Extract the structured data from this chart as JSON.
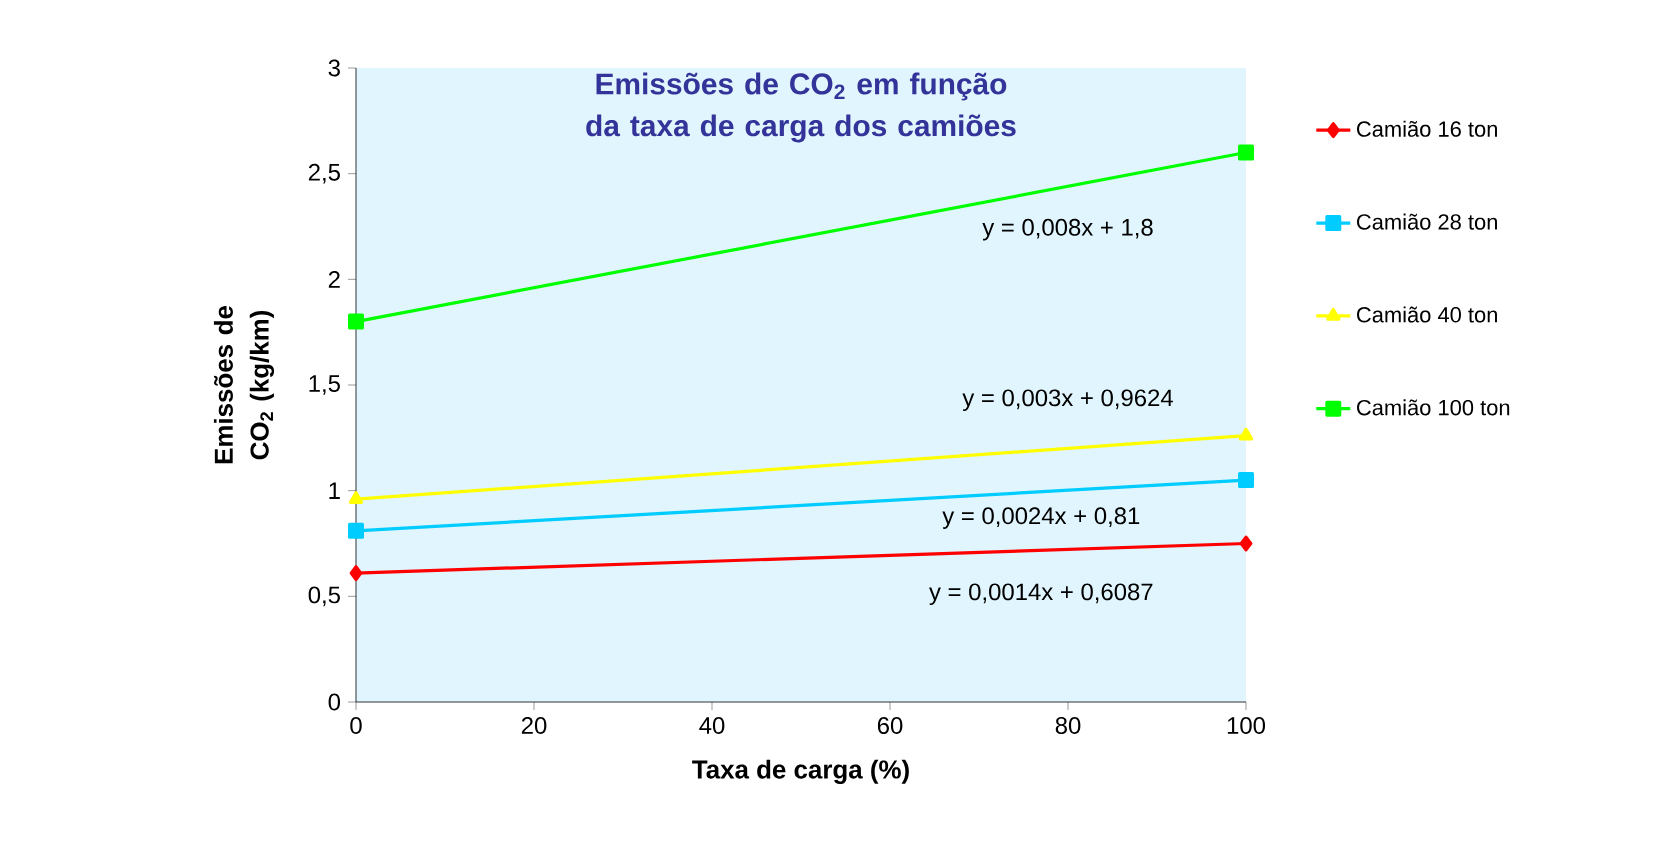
{
  "chart_data": {
    "type": "line",
    "title": "Emissões de CO$_{2}$ em função da taxa de carga dos camiões",
    "xlabel": "Taxa de carga (%)",
    "ylabel": "Emissões de CO$_{2}$ (kg/km)",
    "x": [
      0,
      100
    ],
    "series": [
      {
        "name": "Camião 16 ton",
        "color": "#ff0000",
        "marker": "diamond",
        "values": [
          0.61,
          0.75
        ]
      },
      {
        "name": "Camião 28 ton",
        "color": "#00ccff",
        "marker": "square",
        "values": [
          0.81,
          1.05
        ]
      },
      {
        "name": "Camião 40 ton",
        "color": "#ffff00",
        "marker": "triangle",
        "values": [
          0.96,
          1.26
        ]
      },
      {
        "name": "Camião 100 ton",
        "color": "#00ff00",
        "marker": "square",
        "values": [
          1.8,
          2.6
        ]
      }
    ],
    "xlim": [
      0,
      100
    ],
    "xticks": [
      0,
      20,
      40,
      60,
      80,
      100
    ],
    "ylim": [
      0,
      3
    ],
    "yticks": [
      0,
      {
        "value": 0.5,
        "label": "0,5"
      },
      1,
      {
        "value": 1.5,
        "label": "1,5"
      },
      2,
      {
        "value": 2.5,
        "label": "2,5"
      },
      3
    ],
    "annotations": [
      "y = 0,008x + 1,8",
      "y = 0,003x + 0,9624",
      "y = 0,0024x + 0,81",
      "y = 0,0014x + 0,6087"
    ],
    "legend": "right",
    "grid": false
  }
}
